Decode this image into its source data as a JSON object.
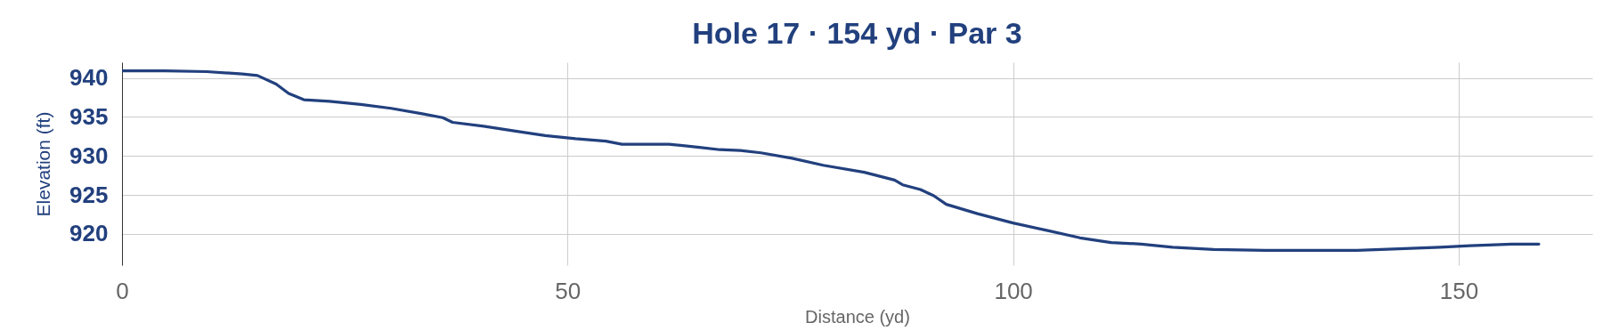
{
  "chart_data": {
    "type": "line",
    "title": "Hole 17 · 154 yd · Par 3",
    "xlabel": "Distance (yd)",
    "ylabel": "Elevation  (ft)",
    "x": [
      0,
      4.8,
      9.5,
      13.5,
      15.2,
      17.3,
      18.7,
      20.4,
      23.3,
      26.8,
      30.2,
      33.7,
      36,
      37.1,
      40.6,
      44,
      47.5,
      50.9,
      54.3,
      56.1,
      61.4,
      64.8,
      67.1,
      69.4,
      71.7,
      75.2,
      78.7,
      83.3,
      86.7,
      87.6,
      89.6,
      91.1,
      92.5,
      96,
      100,
      104,
      107.5,
      111,
      114.4,
      117.9,
      122.5,
      128.3,
      134,
      138.6,
      143.3,
      147.9,
      151.3,
      156,
      159
    ],
    "series": [
      {
        "color": "#22407e",
        "values": [
          940.9,
          940.9,
          940.8,
          940.5,
          940.3,
          939.2,
          938,
          937.2,
          937,
          936.6,
          936.1,
          935.4,
          934.9,
          934.3,
          933.8,
          933.2,
          932.6,
          932.2,
          931.9,
          931.5,
          931.5,
          931.1,
          930.8,
          930.7,
          930.4,
          929.7,
          928.8,
          927.9,
          926.9,
          926.3,
          925.7,
          924.9,
          923.8,
          922.6,
          921.4,
          920.4,
          919.5,
          918.9,
          918.7,
          918.3,
          918,
          917.9,
          917.9,
          917.9,
          918.1,
          918.3,
          918.5,
          918.7,
          918.7
        ]
      }
    ],
    "xlim": [
      0,
      165
    ],
    "xticks": [
      0,
      50,
      100,
      150
    ],
    "ylim": [
      916,
      942
    ],
    "yticks": [
      920,
      925,
      930,
      935,
      940
    ],
    "grid": true
  }
}
